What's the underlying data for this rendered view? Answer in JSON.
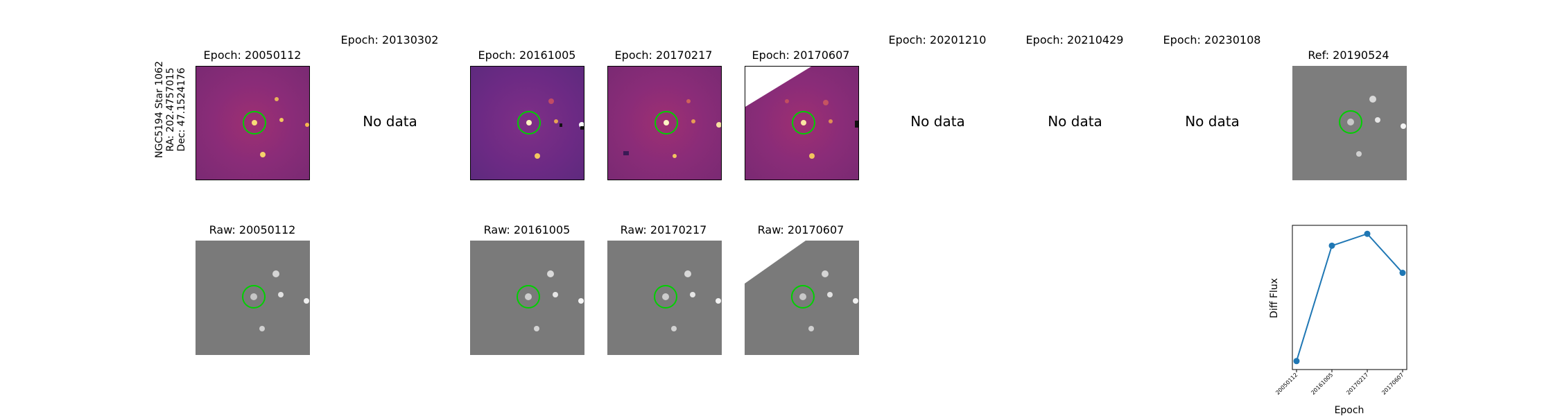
{
  "sidebar": {
    "star_label": "NGC5194 Star 1062",
    "ra_label": "RA: 202.4757015",
    "dec_label": "Dec: 47.1524176"
  },
  "titles": {
    "e1": "Epoch: 20050112",
    "e2": "Epoch: 20130302",
    "e3": "Epoch: 20161005",
    "e4": "Epoch: 20170217",
    "e5": "Epoch: 20170607",
    "e6": "Epoch: 20201210",
    "e7": "Epoch: 20210429",
    "e8": "Epoch: 20230108",
    "ref": "Ref: 20190524",
    "r1": "Raw: 20050112",
    "r3": "Raw: 20161005",
    "r4": "Raw: 20170217",
    "r5": "Raw: 20170607"
  },
  "no_data_label": "No data",
  "colors": {
    "marker_circle": "#00d000",
    "series": "#1f77b4"
  },
  "chart_data": {
    "type": "line",
    "categories": [
      "20050112",
      "20161005",
      "20170217",
      "20170607"
    ],
    "values": [
      0.1,
      0.78,
      0.85,
      0.62
    ],
    "title": "",
    "xlabel": "Epoch",
    "ylabel": "Diff Flux",
    "ylim": [
      0.05,
      0.9
    ],
    "y_ticks_shown": false
  }
}
